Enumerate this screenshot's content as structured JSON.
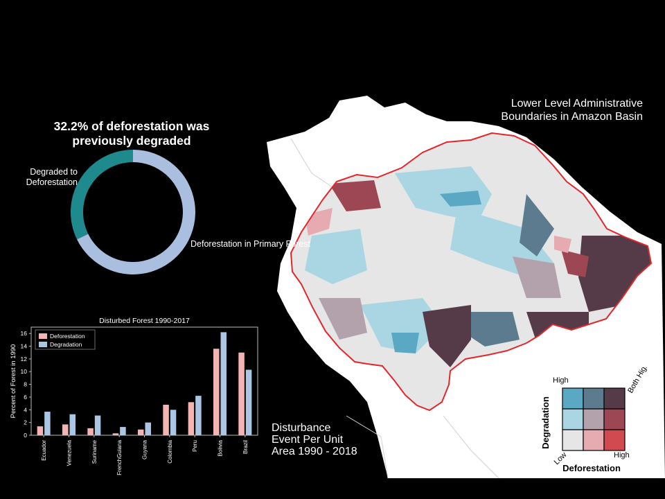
{
  "map": {
    "title": "Lower Level Administrative Boundaries in Amazon Basin",
    "basin_outline_color": "#e3262b"
  },
  "donut": {
    "title": "32.2% of deforestation was previously degraded",
    "slices": [
      {
        "label": "Degraded to Deforestation",
        "value": 32.2,
        "color": "#1f8a8d"
      },
      {
        "label": "Deforestation in Primary Forest",
        "value": 67.8,
        "color": "#aabfdf"
      }
    ]
  },
  "chart_data": {
    "type": "bar",
    "title": "Disturbed Forest 1990-2017",
    "xlabel": "",
    "ylabel": "Percent of Forest in 1990",
    "categories": [
      "Ecuador",
      "Venezuela",
      "Suriname",
      "FrenchGuiana",
      "Guyana",
      "Colombia",
      "Peru",
      "Bolivia",
      "Brazil"
    ],
    "series": [
      {
        "name": "Deforestation",
        "color": "#f4b4b4",
        "values": [
          1.4,
          1.7,
          1.1,
          0.3,
          0.9,
          4.8,
          5.2,
          13.6,
          13.0
        ]
      },
      {
        "name": "Degradation",
        "color": "#abc6e4",
        "values": [
          3.7,
          3.3,
          3.1,
          1.3,
          2.0,
          4.0,
          6.2,
          16.2,
          10.3
        ]
      }
    ],
    "ylim": [
      0,
      17
    ],
    "yticks": [
      0,
      2,
      4,
      6,
      8,
      10,
      12,
      14,
      16
    ],
    "legend_position": "top-left",
    "grid": false
  },
  "disturbance": {
    "title": "Disturbance Event Per Unit Area 1990 - 2018"
  },
  "legend": {
    "y_axis_label": "Degradation",
    "x_axis_label": "Deforestation",
    "high_y": "High",
    "high_x": "High",
    "low": "Low",
    "both_high": "Both High",
    "grid_colors": [
      [
        "#5ba8c4",
        "#5d7b8e",
        "#553b47"
      ],
      [
        "#a9d6e2",
        "#b3a2ac",
        "#9e4754"
      ],
      [
        "#e6e6e6",
        "#e6aab1",
        "#d04a4f"
      ]
    ]
  }
}
